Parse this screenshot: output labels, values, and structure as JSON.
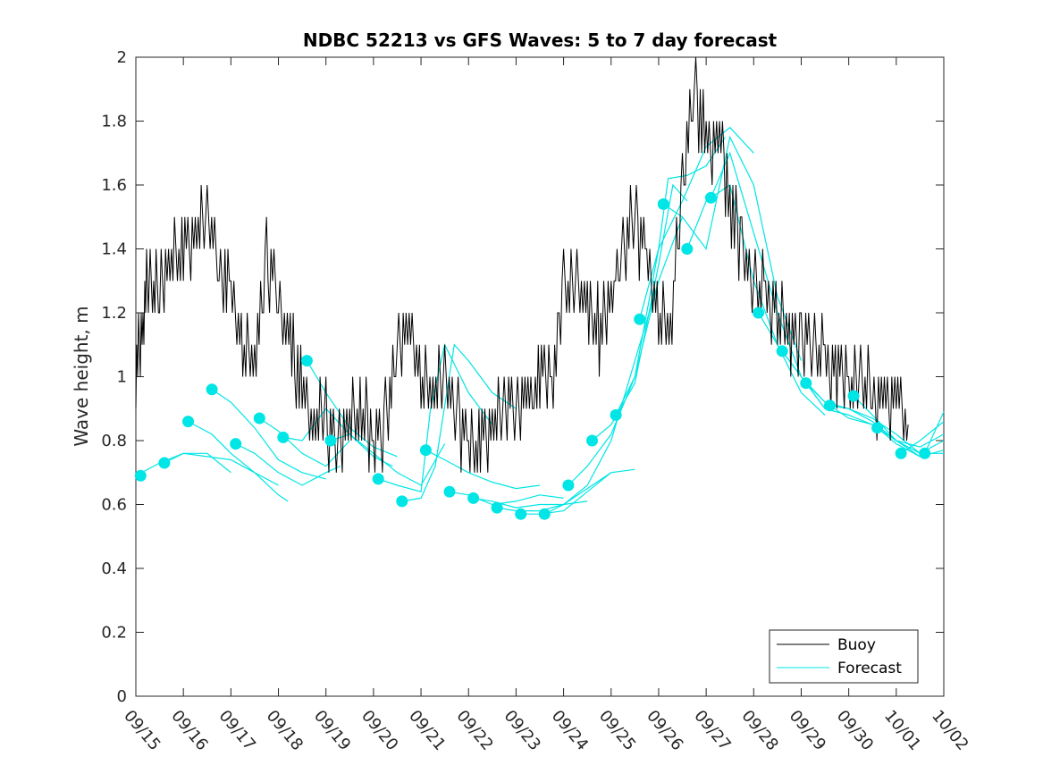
{
  "chart_data": {
    "type": "line",
    "title": "NDBC 52213 vs GFS Waves: 5 to 7 day forecast",
    "xlabel": "",
    "ylabel": "Wave height, m",
    "ylim": [
      0,
      2
    ],
    "xlim_days": [
      0,
      17
    ],
    "yticks": [
      "0",
      "0.2",
      "0.4",
      "0.6",
      "0.8",
      "1",
      "1.2",
      "1.4",
      "1.6",
      "1.8",
      "2"
    ],
    "xtick_labels": [
      "09/15",
      "09/16",
      "09/17",
      "09/18",
      "09/19",
      "09/20",
      "09/21",
      "09/22",
      "09/23",
      "09/24",
      "09/25",
      "09/26",
      "09/27",
      "09/28",
      "09/29",
      "09/30",
      "10/01",
      "10/02"
    ],
    "legend": {
      "location": "bottom-right",
      "entries": [
        "Buoy",
        "Forecast"
      ]
    },
    "colors": {
      "buoy": "#000000",
      "forecast": "#00e5e5",
      "axis": "#262626"
    },
    "buoy_series": {
      "name": "Buoy",
      "x_days": [
        0,
        0.15,
        0.3,
        0.5,
        0.75,
        1.0,
        1.25,
        1.5,
        1.75,
        2.0,
        2.25,
        2.5,
        2.75,
        3.0,
        3.25,
        3.5,
        3.75,
        4.0,
        4.25,
        4.5,
        4.75,
        5.0,
        5.25,
        5.5,
        5.75,
        6.0,
        6.25,
        6.5,
        6.75,
        7.0,
        7.25,
        7.5,
        7.75,
        8.0,
        8.25,
        8.5,
        8.75,
        9.0,
        9.25,
        9.5,
        9.75,
        10.0,
        10.25,
        10.5,
        10.75,
        11.0,
        11.25,
        11.5,
        11.75,
        12.0,
        12.25,
        12.5,
        12.75,
        13.0,
        13.25,
        13.5,
        13.75,
        14.0,
        14.25,
        14.5,
        14.75,
        15.0,
        15.25,
        15.5,
        15.75,
        16.0,
        16.25
      ],
      "values": [
        1.0,
        1.2,
        1.3,
        1.25,
        1.35,
        1.4,
        1.45,
        1.5,
        1.35,
        1.25,
        1.1,
        1.05,
        1.35,
        1.25,
        1.1,
        0.95,
        0.85,
        0.85,
        0.8,
        0.85,
        0.9,
        0.8,
        0.85,
        1.1,
        1.15,
        1.0,
        0.95,
        1.0,
        0.9,
        0.75,
        0.8,
        0.85,
        0.9,
        0.95,
        0.9,
        1.0,
        1.0,
        1.25,
        1.3,
        1.2,
        1.15,
        1.25,
        1.4,
        1.5,
        1.35,
        1.2,
        1.15,
        1.6,
        1.9,
        1.7,
        1.75,
        1.55,
        1.4,
        1.3,
        1.25,
        1.2,
        1.15,
        1.1,
        1.1,
        1.05,
        1.0,
        1.0,
        0.95,
        0.95,
        0.9,
        0.95,
        0.85
      ]
    },
    "forecast_series": [
      {
        "name": "Forecast 1",
        "x_days": [
          0,
          0.5,
          1.0,
          1.5,
          2.0
        ],
        "values": [
          0.69,
          0.73,
          0.76,
          0.76,
          0.7
        ]
      },
      {
        "name": "Forecast 2",
        "x_days": [
          0.6,
          1.0,
          1.5,
          2.0,
          2.5,
          3.0
        ],
        "values": [
          0.73,
          0.76,
          0.75,
          0.74,
          0.7,
          0.66
        ]
      },
      {
        "name": "Forecast 3",
        "x_days": [
          1.1,
          1.6,
          2.0,
          2.5,
          3.0,
          3.2
        ],
        "values": [
          0.86,
          0.82,
          0.76,
          0.7,
          0.63,
          0.61
        ]
      },
      {
        "name": "Forecast 4",
        "x_days": [
          1.6,
          2.0,
          2.5,
          3.0,
          3.5,
          4.0
        ],
        "values": [
          0.96,
          0.92,
          0.84,
          0.74,
          0.7,
          0.68
        ]
      },
      {
        "name": "Forecast 5",
        "x_days": [
          2.1,
          2.5,
          3.0,
          3.5,
          4.0,
          4.3
        ],
        "values": [
          0.79,
          0.76,
          0.7,
          0.66,
          0.7,
          0.72
        ]
      },
      {
        "name": "Forecast 6",
        "x_days": [
          2.6,
          3.0,
          3.5,
          4.0,
          4.5
        ],
        "values": [
          0.87,
          0.83,
          0.76,
          0.72,
          0.8
        ]
      },
      {
        "name": "Forecast 7",
        "x_days": [
          3.1,
          3.5,
          4.0,
          4.5,
          5.0,
          5.4
        ],
        "values": [
          0.81,
          0.8,
          0.9,
          0.82,
          0.75,
          0.72
        ]
      },
      {
        "name": "Forecast 8",
        "x_days": [
          3.6,
          4.0,
          4.5,
          5.0,
          5.5
        ],
        "values": [
          1.05,
          0.95,
          0.84,
          0.78,
          0.75
        ]
      },
      {
        "name": "Forecast 9",
        "x_days": [
          4.1,
          4.5,
          5.0,
          5.5,
          6.0,
          6.5
        ],
        "values": [
          0.8,
          0.82,
          0.76,
          0.7,
          0.66,
          0.79
        ]
      },
      {
        "name": "Forecast 10",
        "x_days": [
          5.1,
          5.5,
          6.0,
          6.2,
          6.5,
          7.0,
          7.5
        ],
        "values": [
          0.68,
          0.66,
          0.64,
          0.9,
          1.1,
          0.95,
          0.85
        ]
      },
      {
        "name": "Forecast 11",
        "x_days": [
          5.6,
          6.0,
          6.3,
          6.7,
          7.0,
          7.5,
          8.0
        ],
        "values": [
          0.61,
          0.62,
          0.72,
          1.1,
          1.05,
          0.95,
          0.9
        ]
      },
      {
        "name": "Forecast 12",
        "x_days": [
          6.1,
          6.5,
          7.0,
          7.5,
          8.0,
          8.5
        ],
        "values": [
          0.77,
          0.74,
          0.7,
          0.67,
          0.65,
          0.66
        ]
      },
      {
        "name": "Forecast 13",
        "x_days": [
          6.6,
          7.0,
          7.5,
          8.0,
          8.5,
          9.0
        ],
        "values": [
          0.64,
          0.63,
          0.6,
          0.61,
          0.63,
          0.62
        ]
      },
      {
        "name": "Forecast 14",
        "x_days": [
          7.1,
          7.5,
          8.0,
          8.5,
          9.0,
          9.5
        ],
        "values": [
          0.62,
          0.61,
          0.59,
          0.6,
          0.6,
          0.61
        ]
      },
      {
        "name": "Forecast 15",
        "x_days": [
          7.6,
          8.0,
          8.5,
          9.0,
          9.5,
          10.0
        ],
        "values": [
          0.59,
          0.58,
          0.58,
          0.6,
          0.65,
          0.7
        ]
      },
      {
        "name": "Forecast 16",
        "x_days": [
          8.1,
          8.5,
          9.0,
          9.5,
          10.0,
          10.5
        ],
        "values": [
          0.57,
          0.57,
          0.58,
          0.64,
          0.7,
          0.71
        ]
      },
      {
        "name": "Forecast 17",
        "x_days": [
          8.6,
          9.0,
          9.5,
          10.0,
          10.5,
          11.0
        ],
        "values": [
          0.57,
          0.6,
          0.66,
          0.8,
          1.05,
          1.3
        ]
      },
      {
        "name": "Forecast 18",
        "x_days": [
          9.1,
          9.5,
          10.0,
          10.5,
          11.0,
          11.5
        ],
        "values": [
          0.66,
          0.72,
          0.82,
          1.0,
          1.3,
          1.5
        ]
      },
      {
        "name": "Forecast 19",
        "x_days": [
          9.6,
          10.0,
          10.5,
          11.0,
          11.3,
          11.6
        ],
        "values": [
          0.8,
          0.85,
          0.98,
          1.35,
          1.6,
          1.55
        ]
      },
      {
        "name": "Forecast 20",
        "x_days": [
          10.1,
          10.5,
          11.0,
          11.2,
          11.6,
          12.0,
          12.4
        ],
        "values": [
          0.88,
          1.0,
          1.4,
          1.62,
          1.63,
          1.66,
          1.75
        ]
      },
      {
        "name": "Forecast 21",
        "x_days": [
          10.6,
          11.0,
          11.5,
          12.0,
          12.5,
          13.0
        ],
        "values": [
          1.18,
          1.4,
          1.55,
          1.72,
          1.78,
          1.7
        ]
      },
      {
        "name": "Forecast 22",
        "x_days": [
          11.1,
          11.5,
          12.0,
          12.5,
          13.0,
          13.5,
          14.0
        ],
        "values": [
          1.54,
          1.5,
          1.4,
          1.75,
          1.6,
          1.25,
          1.05
        ]
      },
      {
        "name": "Forecast 23",
        "x_days": [
          11.6,
          12.0,
          12.5,
          13.0,
          13.5,
          14.0,
          14.5
        ],
        "values": [
          1.4,
          1.55,
          1.6,
          1.3,
          1.1,
          0.95,
          0.88
        ]
      },
      {
        "name": "Forecast 24",
        "x_days": [
          12.1,
          12.5,
          13.0,
          13.5,
          14.0,
          14.5,
          15.0
        ],
        "values": [
          1.56,
          1.7,
          1.45,
          1.2,
          1.0,
          0.9,
          0.88
        ]
      },
      {
        "name": "Forecast 25",
        "x_days": [
          13.1,
          13.5,
          14.0,
          14.5,
          15.0,
          15.5,
          16.0
        ],
        "values": [
          1.2,
          1.1,
          1.0,
          0.92,
          0.87,
          0.85,
          0.8
        ]
      },
      {
        "name": "Forecast 26",
        "x_days": [
          13.6,
          14.0,
          14.5,
          15.0,
          15.5,
          16.0,
          16.5
        ],
        "values": [
          1.08,
          1.0,
          0.9,
          0.88,
          0.85,
          0.8,
          0.75
        ]
      },
      {
        "name": "Forecast 27",
        "x_days": [
          14.1,
          14.5,
          15.0,
          15.5,
          16.0,
          16.5,
          17.0
        ],
        "values": [
          0.98,
          0.92,
          0.9,
          0.86,
          0.8,
          0.78,
          0.82
        ]
      },
      {
        "name": "Forecast 28",
        "x_days": [
          14.6,
          15.0,
          15.5,
          16.0,
          16.5,
          17.0
        ],
        "values": [
          0.91,
          0.9,
          0.87,
          0.82,
          0.76,
          0.76
        ]
      },
      {
        "name": "Forecast 29",
        "x_days": [
          15.1,
          15.5,
          16.0,
          16.5,
          17.0
        ],
        "values": [
          0.94,
          0.88,
          0.8,
          0.76,
          0.8
        ]
      },
      {
        "name": "Forecast 30",
        "x_days": [
          15.6,
          16.0,
          16.5,
          17.0
        ],
        "values": [
          0.84,
          0.79,
          0.75,
          0.77
        ]
      },
      {
        "name": "Forecast 31",
        "x_days": [
          16.1,
          16.5,
          17.0
        ],
        "values": [
          0.76,
          0.8,
          0.86
        ]
      },
      {
        "name": "Forecast 32",
        "x_days": [
          16.6,
          17.0
        ],
        "values": [
          0.76,
          0.89
        ]
      }
    ],
    "forecast_markers": {
      "x_days": [
        0.1,
        0.6,
        1.1,
        1.6,
        2.1,
        2.6,
        3.1,
        3.6,
        4.1,
        5.1,
        5.6,
        6.1,
        6.6,
        7.1,
        7.6,
        8.1,
        8.6,
        9.1,
        9.6,
        10.1,
        10.6,
        11.1,
        11.6,
        12.1,
        13.1,
        13.6,
        14.1,
        14.6,
        15.1,
        15.6,
        16.1,
        16.6
      ],
      "values": [
        0.69,
        0.73,
        0.86,
        0.96,
        0.79,
        0.87,
        0.81,
        1.05,
        0.8,
        0.68,
        0.61,
        0.77,
        0.64,
        0.62,
        0.59,
        0.57,
        0.57,
        0.66,
        0.8,
        0.88,
        1.18,
        1.54,
        1.4,
        1.56,
        1.2,
        1.08,
        0.98,
        0.91,
        0.94,
        0.84,
        0.76,
        0.76
      ]
    }
  }
}
